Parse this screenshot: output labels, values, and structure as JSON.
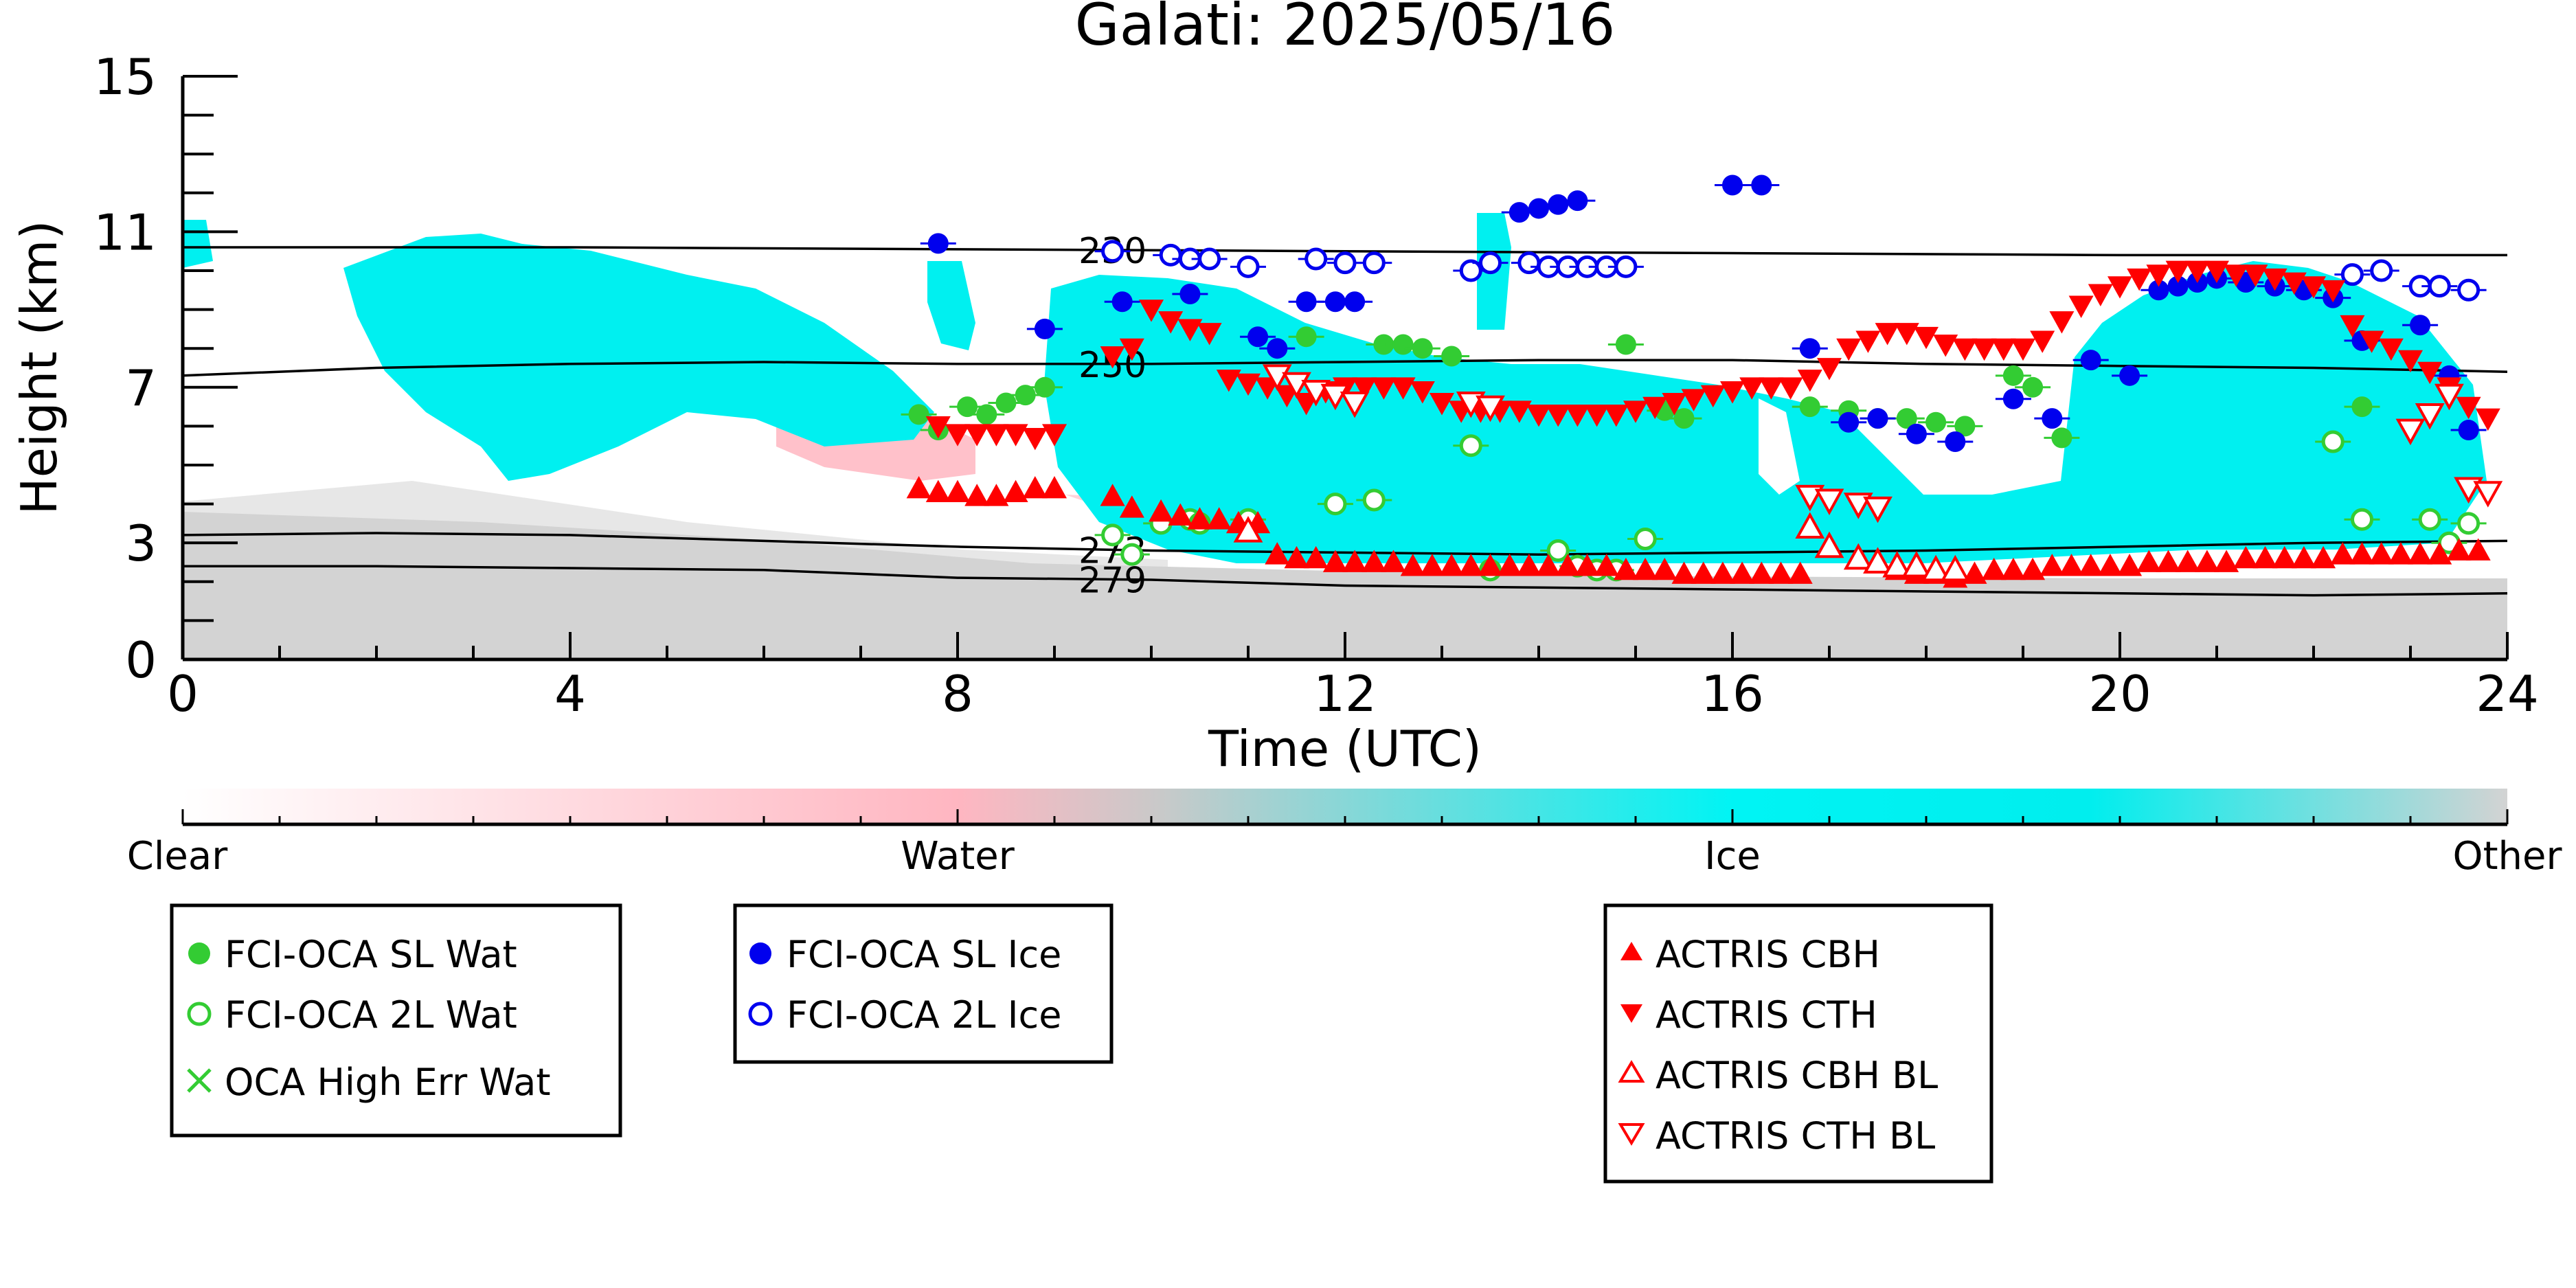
{
  "chart_data": {
    "type": "scatter",
    "title": "Galati: 2025/05/16",
    "xlabel": "Time (UTC)",
    "ylabel": "Height (km)",
    "xlim": [
      0,
      24
    ],
    "ylim": [
      0,
      15
    ],
    "x_ticks": [
      0,
      4,
      8,
      12,
      16,
      20,
      24
    ],
    "y_ticks": [
      0,
      3,
      7,
      11,
      15
    ],
    "grid": false,
    "colorbar": {
      "labels": [
        "Clear",
        "Water",
        "Ice",
        "Other"
      ],
      "colors": {
        "clear": "#ffffff",
        "water": "#ffb6c1",
        "ice": "#00f0f0",
        "other": "#d3d3d3"
      }
    },
    "contours": [
      {
        "label": "230",
        "x": [
          0,
          4,
          8,
          12,
          16,
          20,
          24
        ],
        "y": [
          10.6,
          10.6,
          10.55,
          10.5,
          10.45,
          10.4,
          10.4
        ]
      },
      {
        "label": "250",
        "x": [
          0,
          2,
          4,
          6,
          8,
          10,
          12,
          14,
          16,
          18,
          20,
          22,
          24
        ],
        "y": [
          7.3,
          7.5,
          7.6,
          7.65,
          7.6,
          7.6,
          7.65,
          7.7,
          7.7,
          7.6,
          7.55,
          7.5,
          7.4
        ]
      },
      {
        "label": "273",
        "x": [
          0,
          2,
          4,
          6,
          8,
          10,
          12,
          14,
          16,
          18,
          20,
          22,
          24
        ],
        "y": [
          3.2,
          3.25,
          3.2,
          3.05,
          2.9,
          2.8,
          2.75,
          2.7,
          2.75,
          2.8,
          2.9,
          3.0,
          3.05
        ]
      },
      {
        "label": "279",
        "x": [
          0,
          2,
          4,
          6,
          8,
          10,
          12,
          14,
          16,
          18,
          20,
          22,
          24
        ],
        "y": [
          2.4,
          2.4,
          2.35,
          2.3,
          2.1,
          2.05,
          1.9,
          1.85,
          1.8,
          1.75,
          1.7,
          1.65,
          1.7
        ]
      }
    ],
    "series": [
      {
        "name": "FCI-OCA SL Wat",
        "marker": "filled-circle",
        "color": "#33cc33",
        "x": [
          7.6,
          7.8,
          8.1,
          8.3,
          8.5,
          8.7,
          8.9,
          11.6,
          12.4,
          12.6,
          12.8,
          13.1,
          14.9,
          15.3,
          15.5,
          16.8,
          17.2,
          17.5,
          17.8,
          18.1,
          18.4,
          18.9,
          19.1,
          19.4,
          22.5
        ],
        "y": [
          6.3,
          5.9,
          6.5,
          6.3,
          6.6,
          6.8,
          7.0,
          8.3,
          8.1,
          8.1,
          8.0,
          7.8,
          8.1,
          6.4,
          6.2,
          6.5,
          6.4,
          6.2,
          6.2,
          6.1,
          6.0,
          7.3,
          7.0,
          5.7,
          6.5
        ]
      },
      {
        "name": "FCI-OCA 2L Wat",
        "marker": "open-circle",
        "color": "#33cc33",
        "x": [
          9.6,
          9.8,
          10.1,
          10.4,
          10.5,
          11.0,
          11.9,
          12.3,
          13.3,
          13.5,
          14.2,
          14.4,
          14.6,
          14.8,
          15.1,
          22.2,
          22.5,
          23.2,
          23.4,
          23.6
        ],
        "y": [
          3.2,
          2.7,
          3.5,
          3.6,
          3.5,
          3.6,
          4.0,
          4.1,
          5.5,
          2.3,
          2.8,
          2.4,
          2.3,
          2.3,
          3.1,
          5.6,
          3.6,
          3.6,
          3.0,
          3.5
        ]
      },
      {
        "name": "OCA High Err Wat",
        "marker": "cross",
        "color": "#33cc33",
        "x": [],
        "y": []
      },
      {
        "name": "FCI-OCA SL Ice",
        "marker": "filled-circle",
        "color": "#0000ee",
        "x": [
          7.8,
          8.9,
          9.7,
          10.4,
          11.1,
          11.3,
          11.6,
          11.9,
          12.1,
          13.8,
          14.0,
          14.2,
          14.4,
          16.0,
          16.3,
          16.8,
          17.2,
          17.5,
          17.9,
          18.3,
          18.9,
          19.3,
          19.7,
          20.1,
          20.4,
          20.6,
          20.8,
          21.0,
          21.3,
          21.6,
          21.9,
          22.2,
          22.5,
          23.1,
          23.4,
          23.6
        ],
        "y": [
          10.7,
          8.5,
          9.2,
          9.4,
          8.3,
          8.0,
          9.2,
          9.2,
          9.2,
          11.5,
          11.6,
          11.7,
          11.8,
          12.2,
          12.2,
          8.0,
          6.1,
          6.2,
          5.8,
          5.6,
          6.7,
          6.2,
          7.7,
          7.3,
          9.5,
          9.6,
          9.7,
          9.8,
          9.7,
          9.6,
          9.5,
          9.3,
          8.2,
          8.6,
          7.3,
          5.9
        ]
      },
      {
        "name": "FCI-OCA 2L Ice",
        "marker": "open-circle",
        "color": "#0000ee",
        "x": [
          9.6,
          10.2,
          10.4,
          10.6,
          11.0,
          11.7,
          12.0,
          12.3,
          13.3,
          13.5,
          13.9,
          14.1,
          14.3,
          14.5,
          14.7,
          14.9,
          22.4,
          22.7,
          23.1,
          23.3,
          23.6
        ],
        "y": [
          10.5,
          10.4,
          10.3,
          10.3,
          10.1,
          10.3,
          10.2,
          10.2,
          10.0,
          10.2,
          10.2,
          10.1,
          10.1,
          10.1,
          10.1,
          10.1,
          9.9,
          10.0,
          9.6,
          9.6,
          9.5
        ]
      },
      {
        "name": "ACTRIS CBH",
        "marker": "triangle-up",
        "color": "#ff0000",
        "x": [
          7.6,
          7.8,
          8.0,
          8.2,
          8.4,
          8.6,
          8.8,
          9.0,
          9.6,
          9.8,
          10.1,
          10.3,
          10.5,
          10.7,
          10.9,
          11.1,
          11.3,
          11.5,
          11.7,
          11.9,
          12.1,
          12.3,
          12.5,
          12.7,
          12.9,
          13.1,
          13.3,
          13.5,
          13.7,
          13.9,
          14.1,
          14.3,
          14.5,
          14.7,
          14.9,
          15.1,
          15.3,
          15.5,
          15.7,
          15.9,
          16.1,
          16.3,
          16.5,
          16.7,
          17.7,
          17.9,
          18.1,
          18.3,
          18.5,
          18.7,
          18.9,
          19.1,
          19.3,
          19.5,
          19.7,
          19.9,
          20.1,
          20.3,
          20.5,
          20.7,
          20.9,
          21.1,
          21.3,
          21.5,
          21.7,
          21.9,
          22.1,
          22.3,
          22.5,
          22.7,
          22.9,
          23.1,
          23.3,
          23.5,
          23.7
        ],
        "y": [
          4.4,
          4.3,
          4.3,
          4.2,
          4.2,
          4.3,
          4.4,
          4.4,
          4.2,
          3.9,
          3.8,
          3.7,
          3.6,
          3.6,
          3.5,
          3.5,
          2.7,
          2.6,
          2.6,
          2.5,
          2.5,
          2.5,
          2.5,
          2.4,
          2.4,
          2.4,
          2.4,
          2.4,
          2.4,
          2.4,
          2.4,
          2.4,
          2.4,
          2.4,
          2.3,
          2.3,
          2.3,
          2.2,
          2.2,
          2.2,
          2.2,
          2.2,
          2.2,
          2.2,
          2.3,
          2.2,
          2.2,
          2.1,
          2.2,
          2.3,
          2.3,
          2.3,
          2.4,
          2.4,
          2.4,
          2.4,
          2.4,
          2.5,
          2.5,
          2.5,
          2.5,
          2.5,
          2.6,
          2.6,
          2.6,
          2.6,
          2.6,
          2.7,
          2.7,
          2.7,
          2.7,
          2.7,
          2.7,
          2.8,
          2.8
        ]
      },
      {
        "name": "ACTRIS CTH",
        "marker": "triangle-down",
        "color": "#ff0000",
        "x": [
          7.8,
          8.0,
          8.2,
          8.4,
          8.6,
          8.8,
          9.0,
          9.6,
          9.8,
          10.0,
          10.2,
          10.4,
          10.6,
          10.8,
          11.0,
          11.2,
          11.4,
          11.6,
          11.8,
          12.0,
          12.2,
          12.4,
          12.6,
          12.8,
          13.0,
          13.2,
          13.4,
          13.6,
          13.8,
          14.0,
          14.2,
          14.4,
          14.6,
          14.8,
          15.0,
          15.2,
          15.4,
          15.6,
          15.8,
          16.0,
          16.2,
          16.4,
          16.6,
          16.8,
          17.0,
          17.2,
          17.4,
          17.6,
          17.8,
          18.0,
          18.2,
          18.4,
          18.6,
          18.8,
          19.0,
          19.2,
          19.4,
          19.6,
          19.8,
          20.0,
          20.2,
          20.4,
          20.6,
          20.8,
          21.0,
          21.2,
          21.4,
          21.6,
          21.8,
          22.0,
          22.2,
          22.4,
          22.6,
          22.8,
          23.0,
          23.2,
          23.4,
          23.6,
          23.8
        ],
        "y": [
          6.0,
          5.8,
          5.8,
          5.8,
          5.8,
          5.7,
          5.8,
          7.8,
          8.0,
          9.0,
          8.7,
          8.5,
          8.4,
          7.2,
          7.1,
          7.0,
          6.8,
          6.6,
          6.9,
          7.0,
          7.0,
          7.0,
          7.0,
          6.9,
          6.6,
          6.4,
          6.4,
          6.4,
          6.4,
          6.3,
          6.3,
          6.3,
          6.3,
          6.3,
          6.4,
          6.5,
          6.6,
          6.7,
          6.8,
          6.9,
          7.0,
          7.0,
          7.0,
          7.2,
          7.5,
          8.0,
          8.2,
          8.4,
          8.4,
          8.3,
          8.1,
          8.0,
          8.0,
          8.0,
          8.0,
          8.2,
          8.7,
          9.1,
          9.4,
          9.6,
          9.8,
          9.9,
          10.0,
          10.0,
          10.0,
          9.9,
          9.9,
          9.8,
          9.7,
          9.6,
          9.5,
          8.6,
          8.2,
          8.0,
          7.7,
          7.4,
          7.0,
          6.5,
          6.2
        ]
      },
      {
        "name": "ACTRIS CBH BL",
        "marker": "open-triangle-up",
        "color": "#ff0000",
        "x": [
          11.0,
          16.8,
          17.0,
          17.3,
          17.5,
          17.7,
          17.9,
          18.1,
          18.3
        ],
        "y": [
          3.3,
          3.4,
          2.9,
          2.6,
          2.5,
          2.4,
          2.4,
          2.3,
          2.3
        ]
      },
      {
        "name": "ACTRIS CTH BL",
        "marker": "open-triangle-down",
        "color": "#ff0000",
        "x": [
          11.3,
          11.5,
          11.7,
          11.9,
          12.1,
          13.3,
          13.5,
          16.8,
          17.0,
          17.3,
          17.5,
          23.0,
          23.2,
          23.4,
          23.6,
          23.8
        ],
        "y": [
          7.3,
          7.1,
          6.9,
          6.8,
          6.6,
          6.6,
          6.5,
          4.2,
          4.1,
          4.0,
          3.9,
          5.9,
          6.3,
          6.8,
          4.4,
          4.3
        ]
      }
    ]
  },
  "legends": [
    {
      "entries": [
        "FCI-OCA SL Wat",
        "FCI-OCA 2L Wat",
        "OCA High Err Wat"
      ]
    },
    {
      "entries": [
        "FCI-OCA SL Ice",
        "FCI-OCA 2L Ice"
      ]
    },
    {
      "entries": [
        "ACTRIS CBH",
        "ACTRIS CTH",
        "ACTRIS CBH BL",
        "ACTRIS CTH BL"
      ]
    }
  ]
}
